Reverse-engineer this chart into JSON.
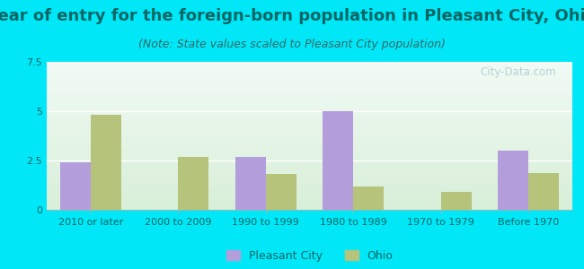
{
  "title": "Year of entry for the foreign-born population in Pleasant City, Ohio",
  "subtitle": "(Note: State values scaled to Pleasant City population)",
  "categories": [
    "2010 or later",
    "2000 to 2009",
    "1990 to 1999",
    "1980 to 1989",
    "1970 to 1979",
    "Before 1970"
  ],
  "pleasant_city_values": [
    2.4,
    0,
    2.7,
    5.0,
    0,
    3.0
  ],
  "ohio_values": [
    4.8,
    2.7,
    1.8,
    1.2,
    0.9,
    1.85
  ],
  "pleasant_city_color": "#b39ddb",
  "ohio_color": "#b5c47a",
  "ylim": [
    0,
    7.5
  ],
  "yticks": [
    0,
    2.5,
    5,
    7.5
  ],
  "bar_width": 0.35,
  "background_outer": "#00e8f8",
  "background_plot_top": "#f0faf5",
  "background_plot_bottom": "#d8efd8",
  "title_color": "#006666",
  "subtitle_color": "#336666",
  "tick_color": "#006666",
  "legend_labels": [
    "Pleasant City",
    "Ohio"
  ],
  "watermark": "City-Data.com",
  "title_fontsize": 13,
  "subtitle_fontsize": 9,
  "tick_fontsize": 8,
  "legend_fontsize": 9
}
